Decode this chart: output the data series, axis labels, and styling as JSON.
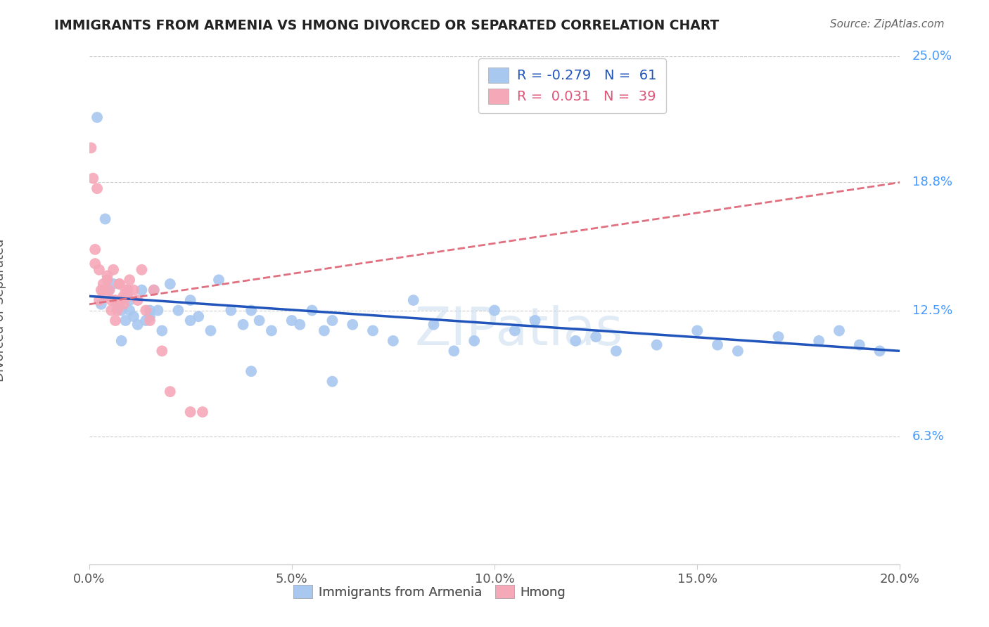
{
  "title": "IMMIGRANTS FROM ARMENIA VS HMONG DIVORCED OR SEPARATED CORRELATION CHART",
  "source": "Source: ZipAtlas.com",
  "ylabel": "Divorced or Separated",
  "xlabel_ticks": [
    "0.0%",
    "5.0%",
    "10.0%",
    "15.0%",
    "20.0%"
  ],
  "xlabel_vals": [
    0.0,
    5.0,
    10.0,
    15.0,
    20.0
  ],
  "ylabel_ticks": [
    "6.3%",
    "12.5%",
    "18.8%",
    "25.0%"
  ],
  "ylabel_vals": [
    6.3,
    12.5,
    18.8,
    25.0
  ],
  "legend_bottom": [
    "Immigrants from Armenia",
    "Hmong"
  ],
  "legend_top_blue_r": "R = -0.279",
  "legend_top_blue_n": "N =  61",
  "legend_top_pink_r": "R =  0.031",
  "legend_top_pink_n": "N =  39",
  "watermark": "ZIPatlas",
  "blue_color": "#A8C8F0",
  "pink_color": "#F5A8B8",
  "blue_line_color": "#2255BB",
  "pink_line_color": "#E07080",
  "background_color": "#FFFFFF",
  "grid_color": "#CCCCCC",
  "blue_points_x": [
    0.2,
    0.4,
    0.5,
    0.6,
    0.7,
    0.8,
    0.9,
    1.0,
    1.0,
    1.1,
    1.2,
    1.3,
    1.4,
    1.5,
    1.6,
    1.7,
    1.8,
    2.0,
    2.2,
    2.5,
    2.7,
    3.0,
    3.2,
    3.5,
    3.8,
    4.0,
    4.2,
    4.5,
    5.0,
    5.2,
    5.5,
    5.8,
    6.0,
    6.5,
    7.0,
    7.5,
    8.0,
    8.5,
    9.0,
    9.5,
    10.0,
    10.5,
    11.0,
    12.0,
    12.5,
    13.0,
    14.0,
    15.0,
    15.5,
    16.0,
    17.0,
    18.0,
    18.5,
    19.0,
    19.5,
    0.3,
    0.8,
    1.5,
    2.5,
    4.0,
    6.0
  ],
  "blue_points_y": [
    22.0,
    17.0,
    13.5,
    13.8,
    12.8,
    12.5,
    12.0,
    13.0,
    12.5,
    12.2,
    11.8,
    13.5,
    12.0,
    12.2,
    13.5,
    12.5,
    11.5,
    13.8,
    12.5,
    13.0,
    12.2,
    11.5,
    14.0,
    12.5,
    11.8,
    12.5,
    12.0,
    11.5,
    12.0,
    11.8,
    12.5,
    11.5,
    12.0,
    11.8,
    11.5,
    11.0,
    13.0,
    11.8,
    10.5,
    11.0,
    12.5,
    11.5,
    12.0,
    11.0,
    11.2,
    10.5,
    10.8,
    11.5,
    10.8,
    10.5,
    11.2,
    11.0,
    11.5,
    10.8,
    10.5,
    12.8,
    11.0,
    12.5,
    12.0,
    9.5,
    9.0
  ],
  "pink_points_x": [
    0.05,
    0.1,
    0.15,
    0.2,
    0.25,
    0.3,
    0.35,
    0.4,
    0.45,
    0.5,
    0.55,
    0.6,
    0.65,
    0.7,
    0.75,
    0.8,
    0.85,
    0.9,
    0.95,
    1.0,
    1.1,
    1.2,
    1.3,
    1.4,
    1.5,
    1.6,
    1.8,
    2.0,
    2.5,
    0.15,
    0.25,
    0.35,
    0.45,
    0.55,
    0.65,
    0.75,
    0.85,
    0.95,
    2.8
  ],
  "pink_points_y": [
    20.5,
    19.0,
    15.5,
    18.5,
    14.5,
    13.5,
    13.8,
    13.2,
    14.0,
    13.5,
    13.0,
    14.5,
    13.0,
    12.5,
    13.8,
    13.0,
    12.8,
    13.5,
    13.2,
    14.0,
    13.5,
    13.0,
    14.5,
    12.5,
    12.0,
    13.5,
    10.5,
    8.5,
    7.5,
    14.8,
    13.0,
    13.5,
    14.2,
    12.5,
    12.0,
    13.8,
    13.2,
    13.5,
    7.5
  ],
  "blue_trendline_x": [
    0.0,
    20.0
  ],
  "blue_trendline_y": [
    13.2,
    10.5
  ],
  "pink_trendline_x": [
    0.0,
    20.0
  ],
  "pink_trendline_y": [
    12.8,
    18.8
  ],
  "xlim": [
    0,
    20
  ],
  "ylim": [
    0,
    25
  ]
}
